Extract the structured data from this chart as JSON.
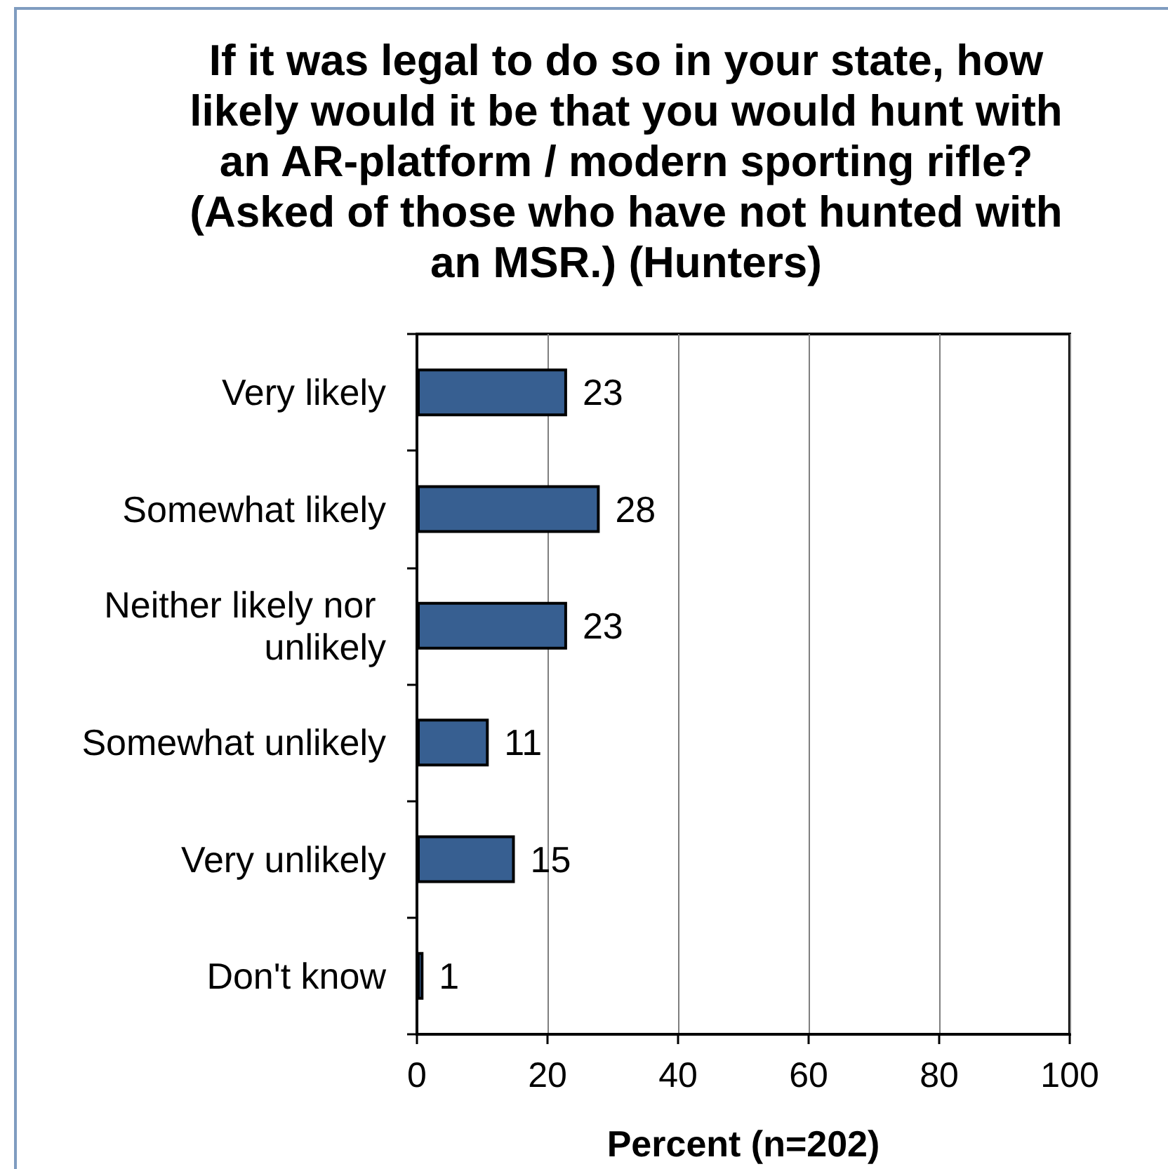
{
  "chart_data": {
    "type": "bar",
    "orientation": "horizontal",
    "title": "If it was legal to do so in your state, how likely would it be that you would hunt with an AR-platform / modern sporting rifle? (Asked of those who have not hunted with an MSR.) (Hunters)",
    "xlabel": "Percent (n=202)",
    "categories": [
      "Very likely",
      "Somewhat likely",
      "Neither likely nor unlikely",
      "Somewhat unlikely",
      "Very unlikely",
      "Don't know"
    ],
    "values": [
      23,
      28,
      23,
      11,
      15,
      1
    ],
    "color": "#375f91",
    "xlim": [
      0,
      100
    ],
    "xticks": [
      0,
      20,
      40,
      60,
      80,
      100
    ],
    "grid": "x",
    "data_labels": true
  }
}
